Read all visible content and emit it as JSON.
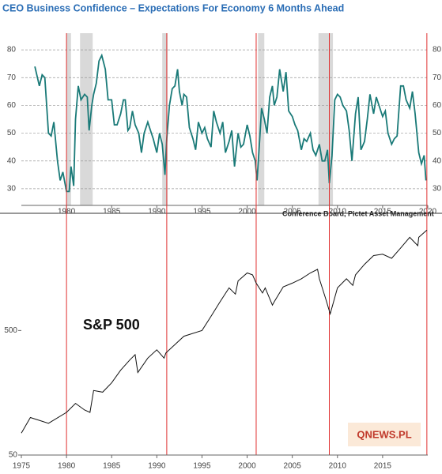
{
  "chart_data": [
    {
      "type": "line",
      "title": "CEO Business Confidence – Expectations For Economy 6 Months Ahead",
      "note": "Conference Board, Pictet Asset Management",
      "series": [
        {
          "color": "#1a7a78",
          "x": [
            1976.5,
            1977,
            1977.3,
            1977.6,
            1978,
            1978.3,
            1978.6,
            1979,
            1979.3,
            1979.6,
            1980,
            1980.3,
            1980.5,
            1980.8,
            1981,
            1981.3,
            1981.6,
            1982,
            1982.3,
            1982.5,
            1982.8,
            1983,
            1983.3,
            1983.6,
            1983.9,
            1984.3,
            1984.6,
            1985,
            1985.3,
            1985.6,
            1986,
            1986.3,
            1986.5,
            1986.8,
            1987,
            1987.3,
            1987.6,
            1988,
            1988.3,
            1988.6,
            1989,
            1989.3,
            1989.6,
            1990,
            1990.3,
            1990.6,
            1990.9,
            1991.1,
            1991.4,
            1991.7,
            1992,
            1992.3,
            1992.5,
            1992.8,
            1993,
            1993.3,
            1993.6,
            1994,
            1994.3,
            1994.6,
            1995,
            1995.3,
            1995.6,
            1996,
            1996.3,
            1996.6,
            1997,
            1997.3,
            1997.6,
            1998,
            1998.3,
            1998.6,
            1999,
            1999.3,
            1999.6,
            2000,
            2000.3,
            2000.6,
            2000.9,
            2001.1,
            2001.4,
            2001.6,
            2001.9,
            2002.2,
            2002.5,
            2002.8,
            2003,
            2003.3,
            2003.6,
            2004,
            2004.3,
            2004.6,
            2005,
            2005.3,
            2005.6,
            2006,
            2006.3,
            2006.6,
            2007,
            2007.3,
            2007.6,
            2008,
            2008.3,
            2008.6,
            2008.9,
            2009.1,
            2009.4,
            2009.7,
            2010,
            2010.3,
            2010.6,
            2011,
            2011.3,
            2011.6,
            2012,
            2012.3,
            2012.6,
            2013,
            2013.3,
            2013.6,
            2014,
            2014.3,
            2014.6,
            2015,
            2015.3,
            2015.6,
            2016,
            2016.3,
            2016.6,
            2017,
            2017.3,
            2017.6,
            2018,
            2018.3,
            2018.6,
            2019,
            2019.3,
            2019.6,
            2019.8
          ],
          "values": [
            74,
            67,
            71,
            70,
            50,
            49,
            54,
            40,
            33,
            36,
            29,
            29,
            38,
            31,
            55,
            67,
            62,
            64,
            63,
            51,
            60,
            64,
            68,
            76,
            78,
            73,
            62,
            62,
            53,
            53,
            57,
            62,
            62,
            51,
            52,
            58,
            53,
            50,
            43,
            50,
            54,
            51,
            48,
            43,
            50,
            46,
            35,
            48,
            60,
            66,
            67,
            73,
            65,
            60,
            64,
            63,
            52,
            48,
            44,
            54,
            50,
            52,
            48,
            45,
            58,
            54,
            50,
            54,
            43,
            47,
            51,
            38,
            50,
            45,
            46,
            53,
            49,
            43,
            40,
            33,
            48,
            59,
            55,
            50,
            63,
            67,
            60,
            63,
            73,
            65,
            72,
            58,
            56,
            53,
            51,
            44,
            48,
            47,
            50,
            44,
            42,
            46,
            40,
            40,
            44,
            32,
            42,
            62,
            64,
            63,
            60,
            58,
            51,
            40,
            57,
            63,
            44,
            47,
            55,
            64,
            57,
            63,
            60,
            56,
            58,
            50,
            46,
            48,
            49,
            67,
            67,
            62,
            59,
            65,
            57,
            43,
            39,
            42,
            33
          ]
        }
      ],
      "shaded_periods": [
        [
          1980,
          1980.5
        ],
        [
          1981.5,
          1982.9
        ],
        [
          1990.6,
          1991.2
        ],
        [
          2001.2,
          2001.9
        ],
        [
          2007.9,
          2009.5
        ]
      ],
      "recession_lines": [
        1980,
        1991.1,
        2001,
        2009.1,
        2019.9
      ],
      "xlim": [
        1975,
        2020
      ],
      "xticks": [
        1980,
        1985,
        1990,
        1995,
        2000,
        2005,
        2010,
        2015,
        2020
      ],
      "ylim": [
        24,
        86
      ],
      "yticks": [
        30,
        40,
        50,
        60,
        70,
        80
      ],
      "grid": true
    },
    {
      "type": "line",
      "label": "S&P 500",
      "logo": "QNEWS.PL",
      "log_scale": true,
      "series": [
        {
          "color": "#111",
          "x": [
            1975,
            1976,
            1977,
            1978,
            1980,
            1981,
            1982,
            1982.6,
            1983,
            1984,
            1985,
            1986,
            1987,
            1987.6,
            1987.9,
            1989,
            1990,
            1990.8,
            1991,
            1993,
            1995,
            1996,
            1997,
            1998,
            1998.7,
            1999,
            2000,
            2000.6,
            2001,
            2001.7,
            2002,
            2002.8,
            2003,
            2004,
            2005,
            2006,
            2007,
            2007.8,
            2008,
            2008.7,
            2009.2,
            2010,
            2011,
            2011.7,
            2012,
            2013,
            2014,
            2015,
            2016,
            2017,
            2018,
            2018.9,
            2019,
            2019.9
          ],
          "values": [
            75,
            100,
            95,
            90,
            110,
            130,
            115,
            110,
            165,
            160,
            190,
            240,
            290,
            320,
            230,
            300,
            350,
            300,
            330,
            450,
            500,
            650,
            850,
            1100,
            980,
            1250,
            1450,
            1400,
            1200,
            1000,
            1100,
            800,
            850,
            1120,
            1200,
            1300,
            1450,
            1550,
            1300,
            900,
            680,
            1100,
            1300,
            1150,
            1400,
            1700,
            2000,
            2050,
            1900,
            2300,
            2800,
            2400,
            2800,
            3200
          ]
        }
      ],
      "xlim": [
        1975,
        2020
      ],
      "xticks": [
        1975,
        1980,
        1985,
        1990,
        1995,
        2000,
        2005,
        2010,
        2015
      ],
      "ylim": [
        50,
        4000
      ],
      "yticks": [
        50,
        500
      ]
    }
  ]
}
